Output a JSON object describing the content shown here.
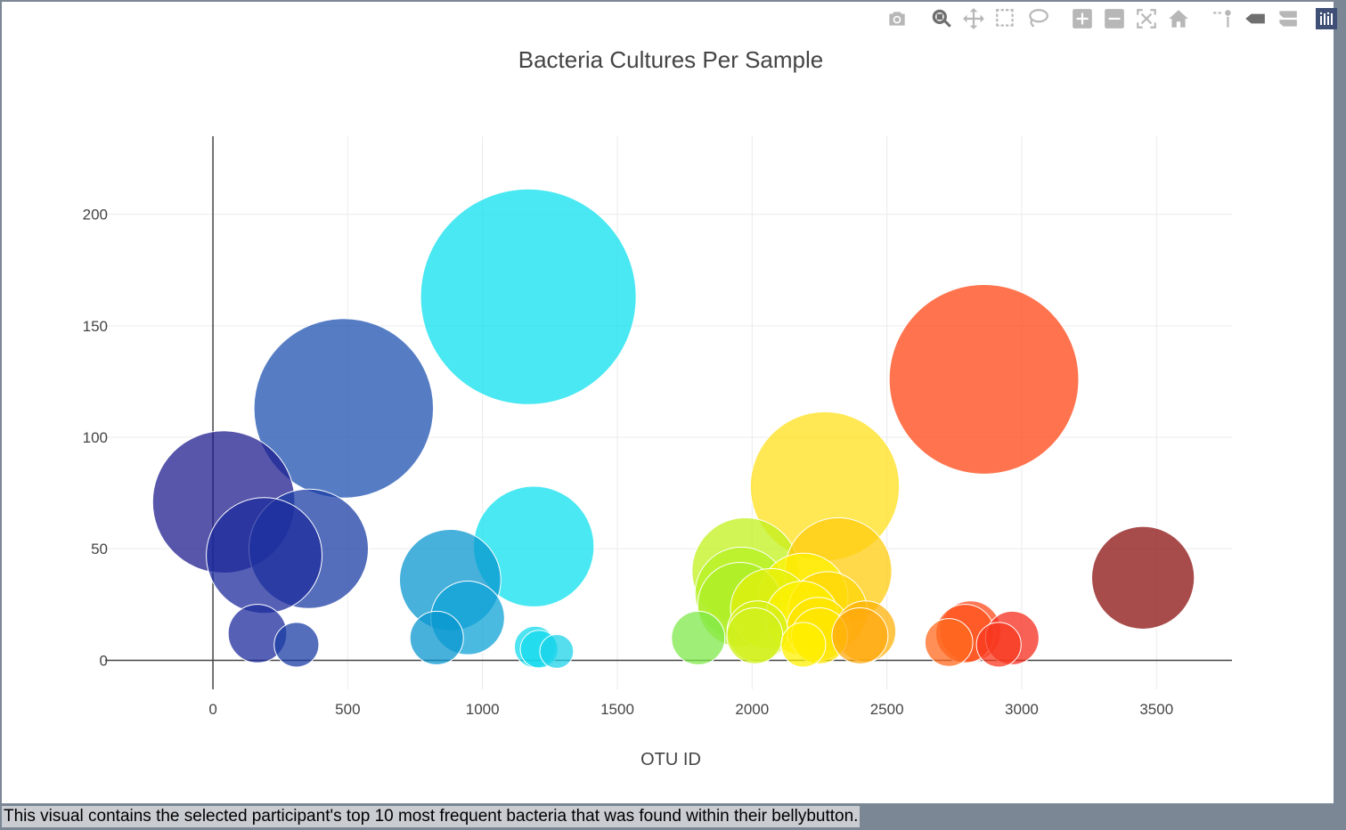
{
  "caption": "This visual contains the selected participant's top 10 most frequent bacteria that was found within their bellybutton.",
  "modebar": {
    "buttons": [
      {
        "name": "camera-icon",
        "active": false
      },
      {
        "name": "zoom-icon",
        "active": true
      },
      {
        "name": "pan-icon",
        "active": false
      },
      {
        "name": "box-select-icon",
        "active": false
      },
      {
        "name": "lasso-select-icon",
        "active": false
      },
      {
        "name": "zoom-in-icon",
        "active": false
      },
      {
        "name": "zoom-out-icon",
        "active": false
      },
      {
        "name": "autoscale-icon",
        "active": false
      },
      {
        "name": "reset-axes-icon",
        "active": false
      },
      {
        "name": "spike-lines-icon",
        "active": false
      },
      {
        "name": "hover-closest-icon",
        "active": false
      },
      {
        "name": "hover-compare-icon",
        "active": false
      }
    ]
  },
  "chart_data": {
    "type": "scatter",
    "title": "Bacteria Cultures Per Sample",
    "xlabel": "OTU ID",
    "ylabel": "",
    "xlim": [
      -400,
      3780
    ],
    "ylim": [
      -13,
      235
    ],
    "xticks": [
      0,
      500,
      1000,
      1500,
      2000,
      2500,
      3000,
      3500
    ],
    "yticks": [
      0,
      50,
      100,
      150,
      200
    ],
    "grid": true,
    "colorscale": "Jet",
    "points": [
      {
        "x": 40,
        "y": 71,
        "color": "#1f1d8f"
      },
      {
        "x": 190,
        "y": 47,
        "color": "#1e2c9c"
      },
      {
        "x": 355,
        "y": 50,
        "color": "#1b3ea6"
      },
      {
        "x": 485,
        "y": 113,
        "color": "#1d52b0"
      },
      {
        "x": 165,
        "y": 12,
        "color": "#1e2c9c"
      },
      {
        "x": 310,
        "y": 7,
        "color": "#1b3ea6"
      },
      {
        "x": 880,
        "y": 36,
        "color": "#0a97cf"
      },
      {
        "x": 945,
        "y": 19,
        "color": "#0fa3d7"
      },
      {
        "x": 830,
        "y": 10,
        "color": "#0a97cf"
      },
      {
        "x": 1170,
        "y": 163,
        "color": "#0de0ee"
      },
      {
        "x": 1190,
        "y": 51,
        "color": "#0de0ee"
      },
      {
        "x": 1195,
        "y": 6,
        "color": "#14dbec"
      },
      {
        "x": 1210,
        "y": 5,
        "color": "#14dbec"
      },
      {
        "x": 1275,
        "y": 4,
        "color": "#1ed3ea"
      },
      {
        "x": 1800,
        "y": 10,
        "color": "#7ee84a"
      },
      {
        "x": 1975,
        "y": 40,
        "color": "#c0f21c"
      },
      {
        "x": 1960,
        "y": 30,
        "color": "#b5f022"
      },
      {
        "x": 1955,
        "y": 25,
        "color": "#aeee28"
      },
      {
        "x": 2020,
        "y": 13,
        "color": "#d4f01a"
      },
      {
        "x": 2010,
        "y": 11,
        "color": "#d0f01c"
      },
      {
        "x": 2070,
        "y": 23,
        "color": "#e4f00e"
      },
      {
        "x": 2190,
        "y": 28,
        "color": "#fff200"
      },
      {
        "x": 2185,
        "y": 19,
        "color": "#fff000"
      },
      {
        "x": 2270,
        "y": 78,
        "color": "#ffe019"
      },
      {
        "x": 2320,
        "y": 40,
        "color": "#ffcc0e"
      },
      {
        "x": 2280,
        "y": 22,
        "color": "#ffd60a"
      },
      {
        "x": 2245,
        "y": 14,
        "color": "#ffe400"
      },
      {
        "x": 2250,
        "y": 11,
        "color": "#ffe600"
      },
      {
        "x": 2190,
        "y": 7,
        "color": "#fff000"
      },
      {
        "x": 2420,
        "y": 13,
        "color": "#ffb20a"
      },
      {
        "x": 2400,
        "y": 11,
        "color": "#ffa80e"
      },
      {
        "x": 2860,
        "y": 126,
        "color": "#ff4513"
      },
      {
        "x": 2810,
        "y": 13,
        "color": "#ff4a1a"
      },
      {
        "x": 2790,
        "y": 12,
        "color": "#ff521a"
      },
      {
        "x": 2730,
        "y": 8,
        "color": "#ff6a1e"
      },
      {
        "x": 2965,
        "y": 10,
        "color": "#f52c1e"
      },
      {
        "x": 2915,
        "y": 7,
        "color": "#f83a20"
      },
      {
        "x": 3450,
        "y": 37,
        "color": "#8b0f0f"
      }
    ]
  }
}
